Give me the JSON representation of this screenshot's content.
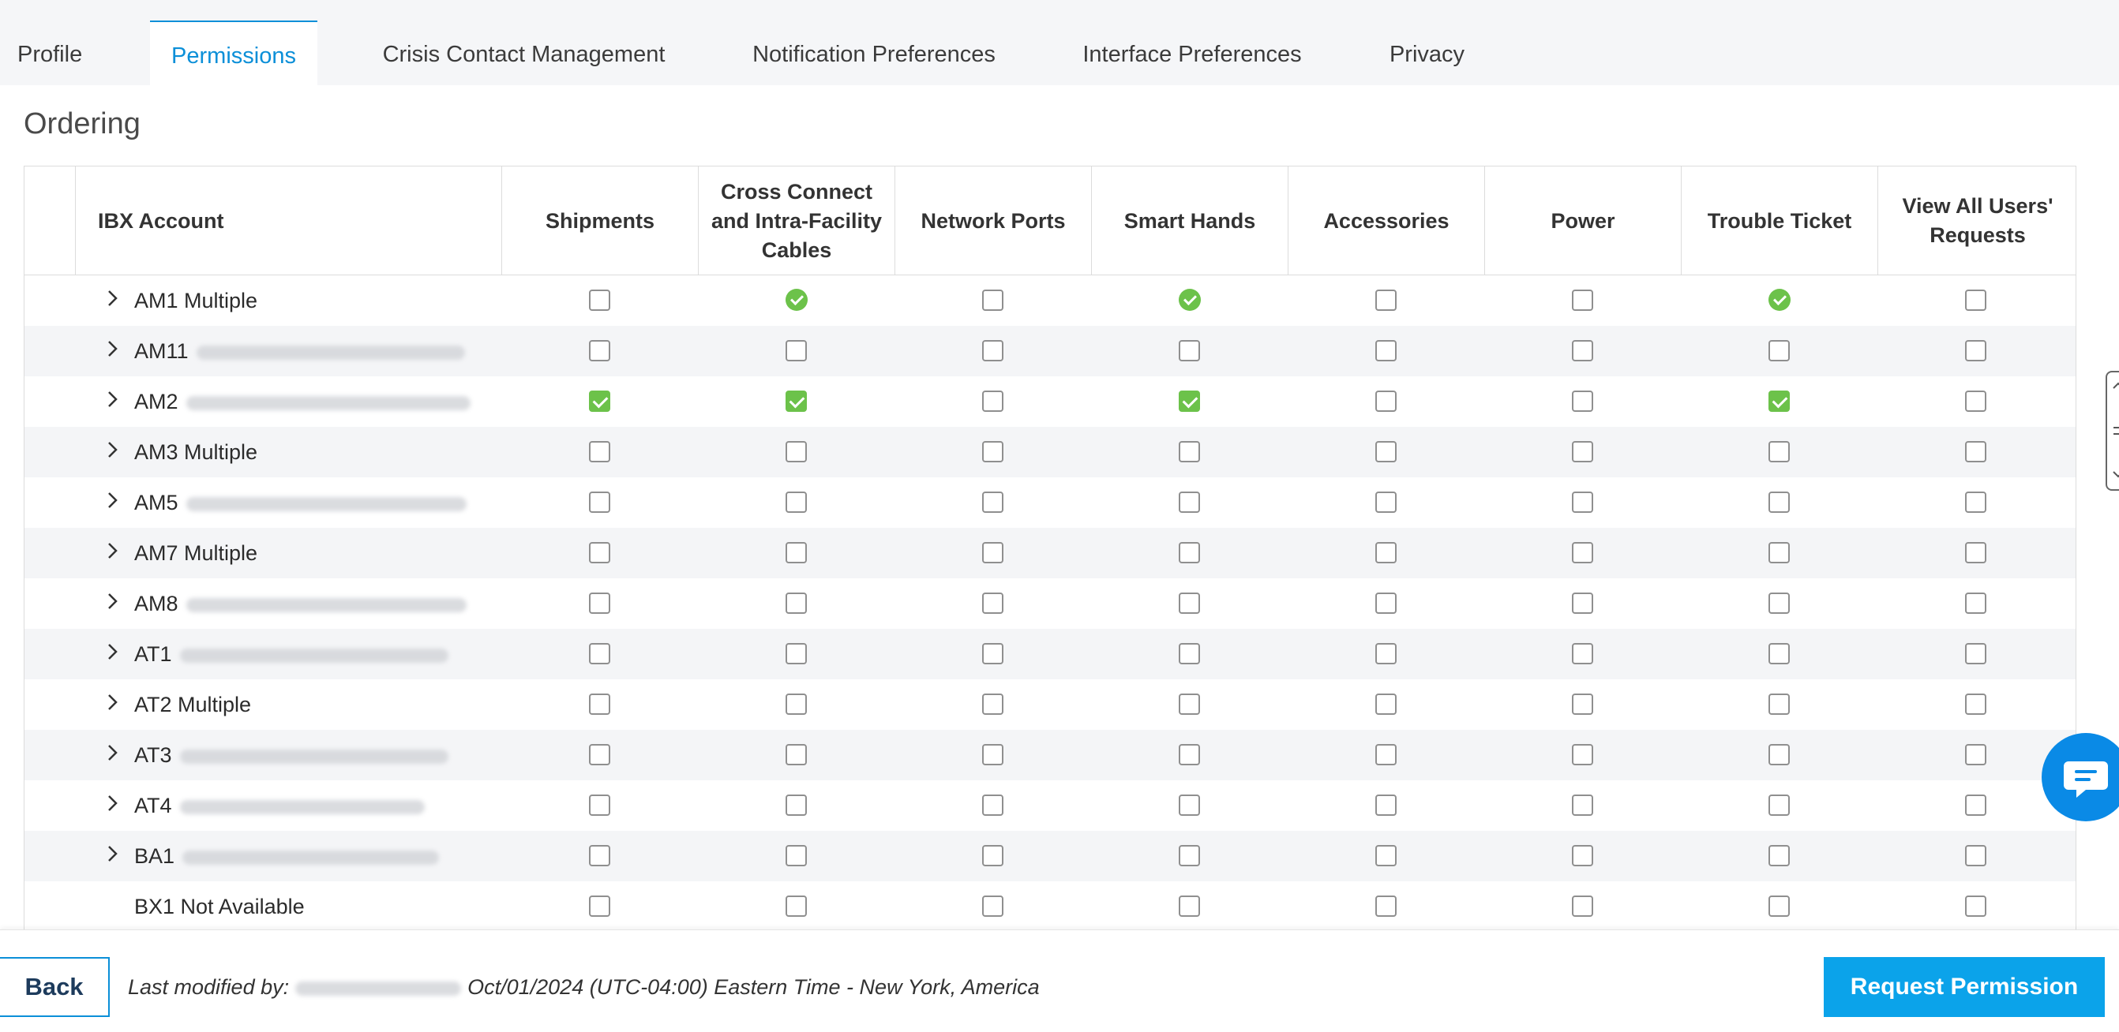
{
  "tabs": [
    {
      "label": "Profile",
      "active": false
    },
    {
      "label": "Permissions",
      "active": true
    },
    {
      "label": "Crisis Contact Management",
      "active": false
    },
    {
      "label": "Notification Preferences",
      "active": false
    },
    {
      "label": "Interface Preferences",
      "active": false
    },
    {
      "label": "Privacy",
      "active": false
    }
  ],
  "section": {
    "title": "Ordering"
  },
  "table": {
    "headers": {
      "account": "IBX Account",
      "columns": [
        "Shipments",
        "Cross Connect and Intra-Facility Cables",
        "Network Ports",
        "Smart Hands",
        "Accessories",
        "Power",
        "Trouble Ticket",
        "View All Users' Requests"
      ]
    },
    "rows": [
      {
        "name": "AM1 Multiple",
        "expandable": true,
        "redacted": false,
        "cells": [
          "unchecked",
          "dot",
          "unchecked",
          "dot",
          "unchecked",
          "unchecked",
          "dot",
          "unchecked"
        ]
      },
      {
        "name": "AM11",
        "expandable": true,
        "redacted": true,
        "cells": [
          "unchecked",
          "unchecked",
          "unchecked",
          "unchecked",
          "unchecked",
          "unchecked",
          "unchecked",
          "unchecked"
        ]
      },
      {
        "name": "AM2",
        "expandable": true,
        "redacted": true,
        "cells": [
          "checked",
          "checked",
          "unchecked",
          "checked",
          "unchecked",
          "unchecked",
          "checked",
          "unchecked"
        ]
      },
      {
        "name": "AM3 Multiple",
        "expandable": true,
        "redacted": false,
        "cells": [
          "unchecked",
          "unchecked",
          "unchecked",
          "unchecked",
          "unchecked",
          "unchecked",
          "unchecked",
          "unchecked"
        ]
      },
      {
        "name": "AM5",
        "expandable": true,
        "redacted": true,
        "cells": [
          "unchecked",
          "unchecked",
          "unchecked",
          "unchecked",
          "unchecked",
          "unchecked",
          "unchecked",
          "unchecked"
        ]
      },
      {
        "name": "AM7 Multiple",
        "expandable": true,
        "redacted": false,
        "cells": [
          "unchecked",
          "unchecked",
          "unchecked",
          "unchecked",
          "unchecked",
          "unchecked",
          "unchecked",
          "unchecked"
        ]
      },
      {
        "name": "AM8",
        "expandable": true,
        "redacted": true,
        "cells": [
          "unchecked",
          "unchecked",
          "unchecked",
          "unchecked",
          "unchecked",
          "unchecked",
          "unchecked",
          "unchecked"
        ]
      },
      {
        "name": "AT1",
        "expandable": true,
        "redacted": true,
        "cells": [
          "unchecked",
          "unchecked",
          "unchecked",
          "unchecked",
          "unchecked",
          "unchecked",
          "unchecked",
          "unchecked"
        ]
      },
      {
        "name": "AT2 Multiple",
        "expandable": true,
        "redacted": false,
        "cells": [
          "unchecked",
          "unchecked",
          "unchecked",
          "unchecked",
          "unchecked",
          "unchecked",
          "unchecked",
          "unchecked"
        ]
      },
      {
        "name": "AT3",
        "expandable": true,
        "redacted": true,
        "cells": [
          "unchecked",
          "unchecked",
          "unchecked",
          "unchecked",
          "unchecked",
          "unchecked",
          "unchecked",
          "unchecked"
        ]
      },
      {
        "name": "AT4",
        "expandable": true,
        "redacted": true,
        "cells": [
          "unchecked",
          "unchecked",
          "unchecked",
          "unchecked",
          "unchecked",
          "unchecked",
          "unchecked",
          "unchecked"
        ]
      },
      {
        "name": "BA1",
        "expandable": true,
        "redacted": true,
        "cells": [
          "unchecked",
          "unchecked",
          "unchecked",
          "unchecked",
          "unchecked",
          "unchecked",
          "unchecked",
          "unchecked"
        ]
      },
      {
        "name": "BX1 Not Available",
        "expandable": false,
        "redacted": false,
        "cells": [
          "unchecked",
          "unchecked",
          "unchecked",
          "unchecked",
          "unchecked",
          "unchecked",
          "unchecked",
          "unchecked"
        ]
      }
    ]
  },
  "footer": {
    "back_label": "Back",
    "last_modified_prefix": "Last modified by:",
    "last_modified_text": "Oct/01/2024 (UTC-04:00) Eastern Time - New York, America",
    "request_label": "Request Permission"
  },
  "icons": {
    "expand": "chevron-right-icon",
    "chat": "chat-icon",
    "handle": "drawer-handle-icon"
  },
  "colors": {
    "accent": "#0b8fd8",
    "primary_button": "#0ba3ea",
    "check_green": "#6cc24a",
    "chat_blue": "#0a8ae6"
  }
}
